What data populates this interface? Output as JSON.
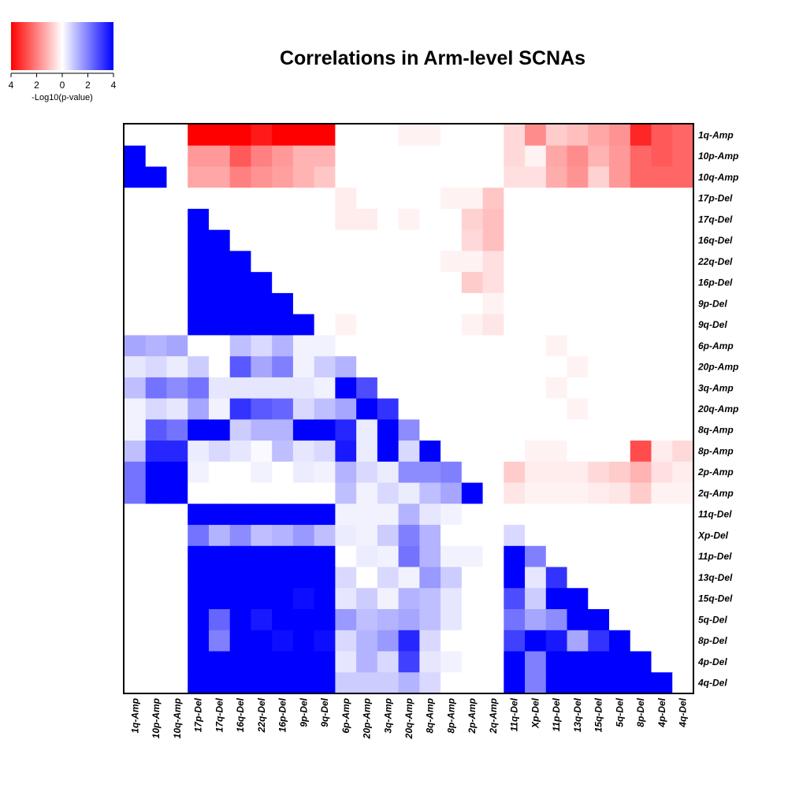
{
  "chart_data": {
    "type": "heatmap",
    "title": "Correlations in Arm-level SCNAs",
    "color_scale": {
      "label": "-Log10(p-value)",
      "ticks": [
        "4",
        "2",
        "0",
        "2",
        "4"
      ],
      "negative_color": "#ff0000",
      "neutral_color": "#ffffff",
      "positive_color": "#0000ff",
      "min": -4,
      "max": 4
    },
    "row_labels": [
      "1q-Amp",
      "10p-Amp",
      "10q-Amp",
      "17p-Del",
      "17q-Del",
      "16q-Del",
      "22q-Del",
      "16p-Del",
      "9p-Del",
      "9q-Del",
      "6p-Amp",
      "20p-Amp",
      "3q-Amp",
      "20q-Amp",
      "8q-Amp",
      "8p-Amp",
      "2p-Amp",
      "2q-Amp",
      "11q-Del",
      "Xp-Del",
      "11p-Del",
      "13q-Del",
      "15q-Del",
      "5q-Del",
      "8p-Del",
      "4p-Del",
      "4q-Del"
    ],
    "col_labels": [
      "1q-Amp",
      "10p-Amp",
      "10q-Amp",
      "17p-Del",
      "17q-Del",
      "16q-Del",
      "22q-Del",
      "16p-Del",
      "9p-Del",
      "9q-Del",
      "6p-Amp",
      "20p-Amp",
      "3q-Amp",
      "20q-Amp",
      "8q-Amp",
      "8p-Amp",
      "2p-Amp",
      "2q-Amp",
      "11q-Del",
      "Xp-Del",
      "11p-Del",
      "13q-Del",
      "15q-Del",
      "5q-Del",
      "8p-Del",
      "4p-Del",
      "4q-Del"
    ],
    "values": [
      [
        0,
        0,
        0,
        -4,
        -4,
        -4,
        -3.6,
        -4,
        -4,
        -4,
        0,
        0,
        0,
        -0.2,
        -0.2,
        0,
        0,
        0,
        -0.6,
        -1.8,
        -0.8,
        -1,
        -1.4,
        -1.7,
        -3.4,
        -2.6,
        -2.4
      ],
      [
        4,
        0,
        0,
        -1.6,
        -1.6,
        -2.6,
        -2,
        -1.6,
        -1.2,
        -1.2,
        0,
        0,
        0,
        0,
        0,
        0,
        0,
        0,
        -0.6,
        -0.2,
        -1.4,
        -1.8,
        -1.2,
        -1.6,
        -2.4,
        -2.6,
        -2.4
      ],
      [
        4,
        4,
        0,
        -1.4,
        -1.4,
        -2,
        -1.7,
        -1.5,
        -1.2,
        -0.9,
        0,
        0,
        0,
        0,
        0,
        0,
        0,
        0,
        -0.5,
        -0.5,
        -1.3,
        -1.7,
        -0.7,
        -1.6,
        -2.4,
        -2.4,
        -2.4
      ],
      [
        0,
        0,
        0,
        0,
        0,
        0,
        0,
        0,
        0,
        0,
        -0.3,
        0,
        0,
        0,
        0,
        -0.2,
        -0.2,
        -0.9,
        0,
        0,
        0,
        0,
        0,
        0,
        0,
        0,
        0
      ],
      [
        0,
        0,
        0,
        4,
        0,
        0,
        0,
        0,
        0,
        0,
        -0.3,
        -0.3,
        0,
        -0.2,
        0,
        0,
        -0.7,
        -1,
        0,
        0,
        0,
        0,
        0,
        0,
        0,
        0,
        0
      ],
      [
        0,
        0,
        0,
        4,
        4,
        0,
        0,
        0,
        0,
        0,
        0,
        0,
        0,
        0,
        0,
        0,
        -0.6,
        -1,
        0,
        0,
        0,
        0,
        0,
        0,
        0,
        0,
        0
      ],
      [
        0,
        0,
        0,
        4,
        4,
        4,
        0,
        0,
        0,
        0,
        0,
        0,
        0,
        0,
        0,
        -0.2,
        -0.2,
        -0.5,
        0,
        0,
        0,
        0,
        0,
        0,
        0,
        0,
        0
      ],
      [
        0,
        0,
        0,
        4,
        4,
        4,
        4,
        0,
        0,
        0,
        0,
        0,
        0,
        0,
        0,
        0,
        -0.8,
        -0.5,
        0,
        0,
        0,
        0,
        0,
        0,
        0,
        0,
        0
      ],
      [
        0,
        0,
        0,
        4,
        4,
        4,
        4,
        4,
        0,
        0,
        0,
        0,
        0,
        0,
        0,
        0,
        0,
        -0.2,
        0,
        0,
        0,
        0,
        0,
        0,
        0,
        0,
        0
      ],
      [
        0,
        0,
        0,
        4,
        4,
        4,
        4,
        4,
        4,
        0,
        -0.2,
        0,
        0,
        0,
        0,
        0,
        -0.2,
        -0.4,
        0,
        0,
        0,
        0,
        0,
        0,
        0,
        0,
        0
      ],
      [
        1.4,
        1.2,
        1.4,
        0,
        0,
        1,
        0.6,
        1.2,
        0.2,
        0.2,
        0,
        0,
        0,
        0,
        0,
        0,
        0,
        0,
        0,
        0,
        -0.2,
        0,
        0,
        0,
        0,
        0,
        0
      ],
      [
        0.4,
        0.6,
        0.3,
        0.8,
        0,
        2.6,
        1.4,
        2,
        0.2,
        0.8,
        1.2,
        0,
        0,
        0,
        0,
        0,
        0,
        0,
        0,
        0,
        0,
        -0.2,
        0,
        0,
        0,
        0,
        0
      ],
      [
        1,
        2.2,
        1.8,
        2.2,
        0.4,
        0.4,
        0.4,
        0.4,
        0.4,
        0.2,
        4,
        2.8,
        0,
        0,
        0,
        0,
        0,
        0,
        0,
        0,
        -0.2,
        0,
        0,
        0,
        0,
        0,
        0
      ],
      [
        0.2,
        0.6,
        0.4,
        1.4,
        0.2,
        3.2,
        2.6,
        2.4,
        0.6,
        1,
        1.4,
        4,
        3.2,
        0,
        0,
        0,
        0,
        0,
        0,
        0,
        0,
        -0.2,
        0,
        0,
        0,
        0,
        0
      ],
      [
        0.2,
        2.6,
        2.2,
        4,
        4,
        0.8,
        1.2,
        1.2,
        4,
        4,
        3.4,
        0.3,
        4,
        1.8,
        0,
        0,
        0,
        0,
        0,
        0,
        0,
        0,
        0,
        0,
        0,
        0,
        0
      ],
      [
        1,
        3.4,
        3.4,
        0.3,
        0.6,
        0.4,
        0.1,
        1,
        0.4,
        0.6,
        3.6,
        0.3,
        4,
        0.6,
        4,
        0,
        0,
        0,
        0,
        -0.2,
        -0.2,
        0,
        0,
        0,
        -2.8,
        -0.3,
        -0.6
      ],
      [
        2.2,
        4,
        4,
        0.2,
        0,
        0,
        0.2,
        0,
        0.3,
        0.2,
        1.2,
        0.6,
        0.3,
        1.8,
        1.8,
        2,
        0,
        0,
        -0.8,
        -0.3,
        -0.3,
        -0.3,
        -0.6,
        -0.8,
        -1.2,
        -0.5,
        -0.3
      ],
      [
        2.2,
        4,
        4,
        0,
        0,
        0,
        0,
        0,
        0,
        0,
        1,
        0.2,
        0.6,
        0.3,
        1,
        1.4,
        4,
        0,
        -0.4,
        -0.2,
        -0.2,
        -0.2,
        -0.3,
        -0.4,
        -0.8,
        -0.2,
        -0.2
      ],
      [
        0,
        0,
        0,
        4,
        4,
        4,
        4,
        4,
        4,
        4,
        0.2,
        0.2,
        0.2,
        1.2,
        0.4,
        0.2,
        0,
        0,
        0,
        0,
        0,
        0,
        0,
        0,
        0,
        0,
        0
      ],
      [
        0,
        0,
        0,
        2.2,
        1.2,
        1.8,
        1,
        1.2,
        1.6,
        1,
        0.3,
        0.2,
        0.8,
        2,
        1.2,
        0,
        0,
        0,
        0.6,
        0,
        0,
        0,
        0,
        0,
        0,
        0,
        0
      ],
      [
        0,
        0,
        0,
        4,
        4,
        4,
        4,
        4,
        4,
        4,
        0,
        0.3,
        0.2,
        2.2,
        1.2,
        0.2,
        0.2,
        0,
        4,
        2,
        0,
        0,
        0,
        0,
        0,
        0,
        0
      ],
      [
        0,
        0,
        0,
        4,
        4,
        4,
        4,
        4,
        4,
        4,
        0.6,
        0,
        0.6,
        0.2,
        1.6,
        0.8,
        0,
        0,
        4,
        0.4,
        3.2,
        0,
        0,
        0,
        0,
        0,
        0
      ],
      [
        0,
        0,
        0,
        4,
        4,
        4,
        4,
        4,
        3.8,
        4,
        0.4,
        0.8,
        0.2,
        1.2,
        1,
        0.4,
        0,
        0,
        2.8,
        0.8,
        4,
        4,
        0,
        0,
        0,
        0,
        0
      ],
      [
        0,
        0,
        0,
        4,
        2.4,
        4,
        3.6,
        4,
        4,
        4,
        1.6,
        1,
        1.2,
        1.4,
        1,
        0.4,
        0,
        0,
        2.2,
        1.4,
        1.8,
        4,
        4,
        0,
        0,
        0,
        0
      ],
      [
        0,
        0,
        0,
        4,
        2,
        4,
        4,
        3.8,
        4,
        3.8,
        0.6,
        1.2,
        1.6,
        3.4,
        0.6,
        0,
        0,
        0,
        3,
        4,
        3.6,
        1.4,
        3.2,
        4,
        0,
        0,
        0
      ],
      [
        0,
        0,
        0,
        4,
        4,
        4,
        4,
        4,
        4,
        4,
        0.4,
        1.2,
        0.6,
        3,
        0.4,
        0.2,
        0,
        0,
        4,
        2,
        4,
        4,
        4,
        4,
        4,
        0,
        0
      ],
      [
        0,
        0,
        0,
        4,
        4,
        4,
        4,
        4,
        4,
        4,
        0.8,
        0.8,
        0.8,
        1.2,
        0.6,
        0,
        0,
        0,
        4,
        2,
        4,
        4,
        4,
        4,
        4,
        4,
        0
      ]
    ]
  }
}
